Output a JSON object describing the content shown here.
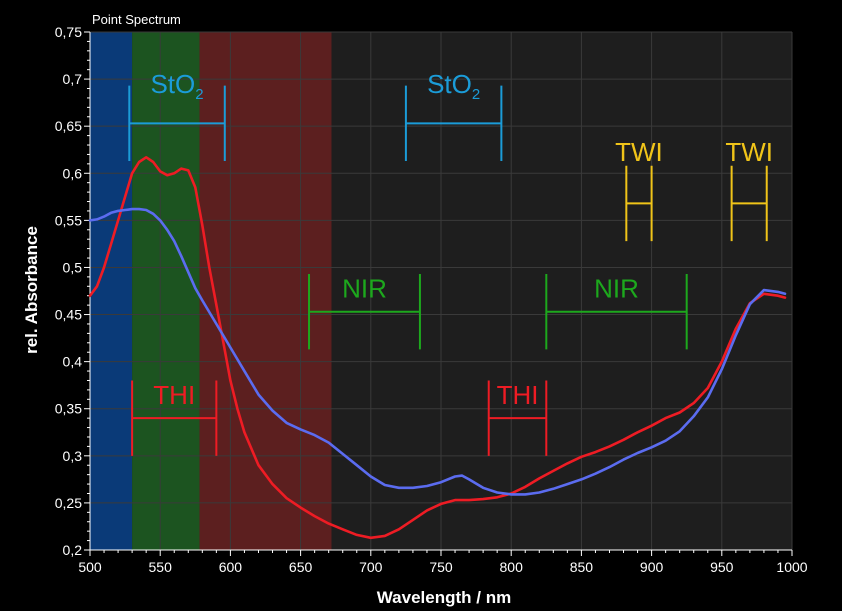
{
  "panel_title": "Point Spectrum",
  "chart_data": {
    "type": "line",
    "title": "Point Spectrum",
    "xlabel": "Wavelength / nm",
    "ylabel": "rel. Absorbance",
    "xlim": [
      500,
      1000
    ],
    "ylim": [
      0.2,
      0.75
    ],
    "x_ticks": [
      "500",
      "550",
      "600",
      "650",
      "700",
      "750",
      "800",
      "850",
      "900",
      "950",
      "1000"
    ],
    "y_ticks": [
      "0,2",
      "0,25",
      "0,3",
      "0,35",
      "0,4",
      "0,45",
      "0,5",
      "0,55",
      "0,6",
      "0,65",
      "0,7",
      "0,75"
    ],
    "grid": true,
    "legend": "none",
    "bands": [
      {
        "from": 500,
        "to": 530,
        "color": "#0a3a78"
      },
      {
        "from": 530,
        "to": 578,
        "color": "#1c5420"
      },
      {
        "from": 578,
        "to": 672,
        "color": "#5c1f1f"
      }
    ],
    "series": [
      {
        "color": "#ee1c24",
        "x": [
          500,
          505,
          510,
          515,
          520,
          525,
          530,
          535,
          540,
          545,
          550,
          555,
          560,
          565,
          570,
          575,
          580,
          585,
          590,
          595,
          600,
          605,
          610,
          620,
          630,
          640,
          650,
          660,
          670,
          680,
          690,
          700,
          710,
          720,
          730,
          740,
          750,
          760,
          770,
          780,
          790,
          800,
          810,
          820,
          830,
          840,
          850,
          860,
          870,
          880,
          890,
          900,
          910,
          920,
          930,
          940,
          950,
          960,
          970,
          980,
          990,
          995
        ],
        "y": [
          0.47,
          0.48,
          0.5,
          0.525,
          0.55,
          0.575,
          0.6,
          0.612,
          0.617,
          0.612,
          0.602,
          0.598,
          0.6,
          0.605,
          0.603,
          0.585,
          0.545,
          0.5,
          0.46,
          0.42,
          0.38,
          0.35,
          0.325,
          0.29,
          0.27,
          0.255,
          0.245,
          0.236,
          0.228,
          0.222,
          0.216,
          0.213,
          0.215,
          0.222,
          0.232,
          0.242,
          0.249,
          0.253,
          0.253,
          0.254,
          0.256,
          0.26,
          0.267,
          0.276,
          0.284,
          0.292,
          0.299,
          0.304,
          0.31,
          0.317,
          0.325,
          0.332,
          0.34,
          0.346,
          0.356,
          0.372,
          0.4,
          0.435,
          0.462,
          0.472,
          0.47,
          0.468
        ]
      },
      {
        "color": "#5b6cf0",
        "x": [
          500,
          505,
          510,
          515,
          520,
          525,
          530,
          535,
          540,
          545,
          550,
          555,
          560,
          565,
          570,
          575,
          580,
          590,
          600,
          610,
          620,
          630,
          640,
          650,
          660,
          670,
          680,
          690,
          700,
          710,
          720,
          730,
          740,
          750,
          760,
          765,
          770,
          780,
          790,
          800,
          810,
          820,
          830,
          840,
          850,
          860,
          870,
          880,
          890,
          900,
          910,
          920,
          930,
          940,
          950,
          960,
          970,
          980,
          990,
          995
        ],
        "y": [
          0.55,
          0.551,
          0.554,
          0.558,
          0.56,
          0.561,
          0.562,
          0.562,
          0.561,
          0.557,
          0.55,
          0.54,
          0.528,
          0.512,
          0.495,
          0.478,
          0.465,
          0.44,
          0.415,
          0.39,
          0.365,
          0.348,
          0.335,
          0.328,
          0.322,
          0.314,
          0.302,
          0.29,
          0.278,
          0.269,
          0.266,
          0.266,
          0.268,
          0.272,
          0.278,
          0.279,
          0.275,
          0.266,
          0.261,
          0.259,
          0.259,
          0.261,
          0.265,
          0.27,
          0.275,
          0.281,
          0.288,
          0.296,
          0.303,
          0.309,
          0.316,
          0.326,
          0.342,
          0.362,
          0.392,
          0.428,
          0.461,
          0.476,
          0.474,
          0.472
        ]
      }
    ],
    "annotations": [
      {
        "label": "StO",
        "sub": "2",
        "color": "#1b9cd8",
        "x1": 528,
        "x2": 596,
        "y": 0.653,
        "tick_half": 0.04,
        "text_y": 0.685
      },
      {
        "label": "StO",
        "sub": "2",
        "color": "#1b9cd8",
        "x1": 725,
        "x2": 793,
        "y": 0.653,
        "tick_half": 0.04,
        "text_y": 0.685
      },
      {
        "label": "TWI",
        "color": "#f0c419",
        "x1": 882,
        "x2": 900,
        "y": 0.568,
        "tick_half": 0.04,
        "text_y": 0.613
      },
      {
        "label": "TWI",
        "color": "#f0c419",
        "x1": 957,
        "x2": 982,
        "y": 0.568,
        "tick_half": 0.04,
        "text_y": 0.613
      },
      {
        "label": "NIR",
        "color": "#1da81d",
        "x1": 656,
        "x2": 735,
        "y": 0.453,
        "tick_half": 0.04,
        "text_y": 0.468
      },
      {
        "label": "NIR",
        "color": "#1da81d",
        "x1": 825,
        "x2": 925,
        "y": 0.453,
        "tick_half": 0.04,
        "text_y": 0.468
      },
      {
        "label": "THI",
        "color": "#ee1c24",
        "x1": 530,
        "x2": 590,
        "y": 0.34,
        "tick_half": 0.04,
        "text_y": 0.355
      },
      {
        "label": "THI",
        "color": "#ee1c24",
        "x1": 784,
        "x2": 825,
        "y": 0.34,
        "tick_half": 0.04,
        "text_y": 0.355
      }
    ]
  },
  "colors": {
    "background": "#000000",
    "plot_background": "#1e1e1e",
    "grid": "#3a3a3a",
    "axis": "#ffffff"
  }
}
